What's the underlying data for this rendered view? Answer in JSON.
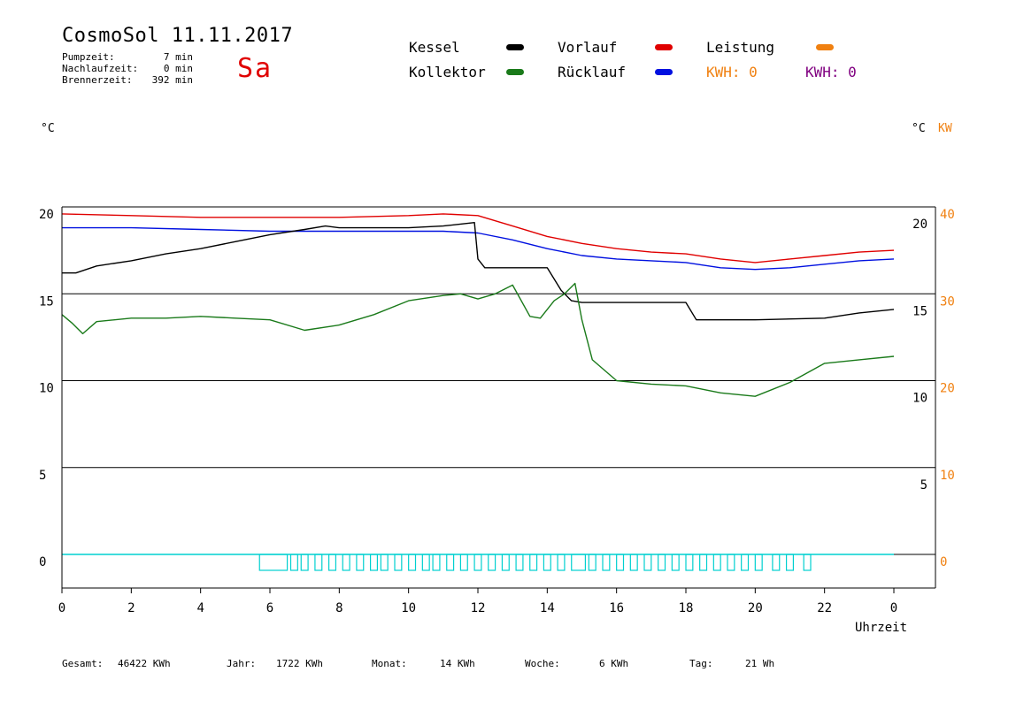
{
  "header": {
    "title": "CosmoSol 11.11.2017",
    "day": "Sa",
    "stats": [
      {
        "label": "Pumpzeit:",
        "value": "7 min"
      },
      {
        "label": "Nachlaufzeit:",
        "value": "0 min"
      },
      {
        "label": "Brennerzeit:",
        "value": "392 min"
      }
    ]
  },
  "legend": {
    "kessel": "Kessel",
    "kollektor": "Kollektor",
    "vorlauf": "Vorlauf",
    "ruecklauf": "Rücklauf",
    "leistung": "Leistung",
    "kwh_orange": "KWH: 0",
    "kwh_purple": "KWH: 0"
  },
  "colors": {
    "kessel": "#000000",
    "kollektor": "#1a7a1a",
    "vorlauf": "#e00000",
    "ruecklauf": "#0010e0",
    "leistung": "#f08010",
    "kwh_purple": "#800080",
    "pump": "#00d0d0"
  },
  "axes": {
    "left_unit": "°C",
    "right_unit": "°C",
    "right_unit2": "KW",
    "xlabel": "Uhrzeit"
  },
  "footer": [
    {
      "label": "Gesamt:",
      "value": "46422 KWh"
    },
    {
      "label": "Jahr:",
      "value": "1722 KWh"
    },
    {
      "label": "Monat:",
      "value": "14 KWh"
    },
    {
      "label": "Woche:",
      "value": "6 KWh"
    },
    {
      "label": "Tag:",
      "value": "21 Wh"
    }
  ],
  "chart_data": {
    "type": "line",
    "xlim": [
      0,
      24
    ],
    "ylim_left": [
      -1.5,
      20
    ],
    "x_ticks": [
      "0",
      "2",
      "4",
      "6",
      "8",
      "10",
      "12",
      "14",
      "16",
      "18",
      "20",
      "22",
      "0"
    ],
    "y_ticks_left": [
      "20",
      "15",
      "10",
      "5",
      "0"
    ],
    "y_ticks_right": [
      "20",
      "15",
      "10",
      "5"
    ],
    "y_ticks_right_kw": [
      "40",
      "30",
      "20",
      "10",
      "0"
    ],
    "grid": "horizontal at 0, 5, 10, 15, 20",
    "series": [
      {
        "name": "Vorlauf",
        "color": "#e00000",
        "x": [
          0,
          2,
          4,
          6,
          8,
          10,
          11,
          12,
          13,
          14,
          15,
          16,
          17,
          18,
          19,
          20,
          21,
          22,
          23,
          24
        ],
        "y": [
          19.6,
          19.5,
          19.4,
          19.4,
          19.4,
          19.5,
          19.6,
          19.5,
          18.9,
          18.3,
          17.9,
          17.6,
          17.4,
          17.3,
          17.0,
          16.8,
          17.0,
          17.2,
          17.4,
          17.5
        ]
      },
      {
        "name": "Rücklauf",
        "color": "#0010e0",
        "x": [
          0,
          2,
          4,
          6,
          8,
          10,
          11,
          12,
          13,
          14,
          15,
          16,
          17,
          18,
          19,
          20,
          21,
          22,
          23,
          24
        ],
        "y": [
          18.8,
          18.8,
          18.7,
          18.6,
          18.6,
          18.6,
          18.6,
          18.5,
          18.1,
          17.6,
          17.2,
          17.0,
          16.9,
          16.8,
          16.5,
          16.4,
          16.5,
          16.7,
          16.9,
          17.0
        ]
      },
      {
        "name": "Kessel",
        "color": "#000000",
        "x": [
          0,
          0.4,
          1,
          2,
          3,
          4,
          5,
          6,
          7,
          7.6,
          8,
          9,
          10,
          11,
          11.9,
          12,
          12.2,
          13,
          14,
          14.4,
          14.7,
          15,
          16,
          17,
          18,
          18.3,
          18.5,
          20,
          22,
          23,
          24
        ],
        "y": [
          16.2,
          16.2,
          16.6,
          16.9,
          17.3,
          17.6,
          18.0,
          18.4,
          18.7,
          18.9,
          18.8,
          18.8,
          18.8,
          18.9,
          19.1,
          17.0,
          16.5,
          16.5,
          16.5,
          15.2,
          14.6,
          14.5,
          14.5,
          14.5,
          14.5,
          13.5,
          13.5,
          13.5,
          13.6,
          13.9,
          14.1
        ]
      },
      {
        "name": "Kollektor",
        "color": "#1a7a1a",
        "x": [
          0,
          0.3,
          0.6,
          1,
          2,
          3,
          4,
          5,
          6,
          7,
          8,
          9,
          10,
          11,
          11.5,
          12,
          12.5,
          13,
          13.5,
          13.8,
          14.2,
          14.5,
          14.8,
          15,
          15.3,
          16,
          17,
          18,
          19,
          20,
          21,
          22,
          23,
          24
        ],
        "y": [
          13.8,
          13.3,
          12.7,
          13.4,
          13.6,
          13.6,
          13.7,
          13.6,
          13.5,
          12.9,
          13.2,
          13.8,
          14.6,
          14.9,
          15.0,
          14.7,
          15.0,
          15.5,
          13.7,
          13.6,
          14.6,
          15.0,
          15.6,
          13.5,
          11.2,
          10.0,
          9.8,
          9.7,
          9.3,
          9.1,
          9.9,
          11.0,
          11.2,
          11.4
        ]
      }
    ],
    "pump_intervals": [
      [
        5.7,
        6.5
      ],
      [
        6.6,
        6.8
      ],
      [
        6.9,
        7.1
      ],
      [
        7.3,
        7.5
      ],
      [
        7.7,
        7.9
      ],
      [
        8.1,
        8.3
      ],
      [
        8.5,
        8.7
      ],
      [
        8.9,
        9.1
      ],
      [
        9.2,
        9.4
      ],
      [
        9.6,
        9.8
      ],
      [
        10.0,
        10.2
      ],
      [
        10.4,
        10.6
      ],
      [
        10.7,
        10.9
      ],
      [
        11.1,
        11.3
      ],
      [
        11.5,
        11.7
      ],
      [
        11.9,
        12.1
      ],
      [
        12.3,
        12.5
      ],
      [
        12.7,
        12.9
      ],
      [
        13.1,
        13.3
      ],
      [
        13.5,
        13.7
      ],
      [
        13.9,
        14.1
      ],
      [
        14.3,
        14.5
      ],
      [
        14.7,
        15.1
      ],
      [
        15.2,
        15.4
      ],
      [
        15.6,
        15.8
      ],
      [
        16.0,
        16.2
      ],
      [
        16.4,
        16.6
      ],
      [
        16.8,
        17.0
      ],
      [
        17.2,
        17.4
      ],
      [
        17.6,
        17.8
      ],
      [
        18.0,
        18.2
      ],
      [
        18.4,
        18.6
      ],
      [
        18.8,
        19.0
      ],
      [
        19.2,
        19.4
      ],
      [
        19.6,
        19.8
      ],
      [
        20.0,
        20.2
      ],
      [
        20.5,
        20.7
      ],
      [
        20.9,
        21.1
      ],
      [
        21.4,
        21.6
      ]
    ]
  }
}
